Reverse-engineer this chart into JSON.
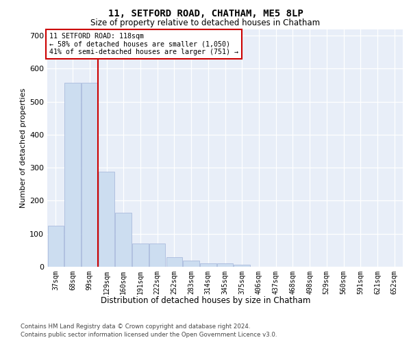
{
  "title": "11, SETFORD ROAD, CHATHAM, ME5 8LP",
  "subtitle": "Size of property relative to detached houses in Chatham",
  "xlabel": "Distribution of detached houses by size in Chatham",
  "ylabel": "Number of detached properties",
  "categories": [
    "37sqm",
    "68sqm",
    "99sqm",
    "129sqm",
    "160sqm",
    "191sqm",
    "222sqm",
    "252sqm",
    "283sqm",
    "314sqm",
    "345sqm",
    "375sqm",
    "406sqm",
    "437sqm",
    "468sqm",
    "498sqm",
    "529sqm",
    "560sqm",
    "591sqm",
    "621sqm",
    "652sqm"
  ],
  "bar_values": [
    125,
    558,
    558,
    287,
    163,
    70,
    70,
    30,
    18,
    10,
    10,
    7,
    0,
    0,
    0,
    0,
    0,
    0,
    0,
    0,
    0
  ],
  "bar_color": "#ccddf0",
  "bar_edge_color": "#aabbdd",
  "vline_x": 2.5,
  "vline_color": "#cc0000",
  "annotation_text": "11 SETFORD ROAD: 118sqm\n← 58% of detached houses are smaller (1,050)\n41% of semi-detached houses are larger (751) →",
  "annotation_box_color": "#ffffff",
  "annotation_box_edge_color": "#cc0000",
  "ylim": [
    0,
    720
  ],
  "yticks": [
    0,
    100,
    200,
    300,
    400,
    500,
    600,
    700
  ],
  "bg_color": "#e8eef8",
  "footer_line1": "Contains HM Land Registry data © Crown copyright and database right 2024.",
  "footer_line2": "Contains public sector information licensed under the Open Government Licence v3.0."
}
